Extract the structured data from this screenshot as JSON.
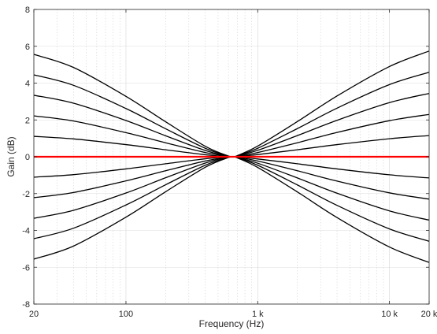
{
  "chart_data": {
    "type": "line",
    "title": "",
    "xlabel": "Frequency (Hz)",
    "ylabel": "Gain (dB)",
    "xscale": "log",
    "xlim": [
      20,
      20000
    ],
    "ylim": [
      -8,
      8
    ],
    "grid": true,
    "x_ticks": [
      20,
      100,
      1000,
      10000,
      20000
    ],
    "x_tick_labels": [
      "20",
      "100",
      "1 k",
      "10 k",
      "20 k"
    ],
    "y_ticks": [
      -8,
      -6,
      -4,
      -2,
      0,
      2,
      4,
      6,
      8
    ],
    "y_tick_labels": [
      "-8",
      "-6",
      "-4",
      "-2",
      "0",
      "2",
      "4",
      "6",
      "8"
    ],
    "x": [
      20,
      40,
      100,
      200,
      400,
      600,
      660,
      700,
      1000,
      2000,
      4000,
      10000,
      20000
    ],
    "series": [
      {
        "color": "#000000",
        "values": [
          5.56,
          4.85,
          3.28,
          1.9,
          0.57,
          0.04,
          0.0,
          -0.06,
          -0.58,
          -1.91,
          -3.3,
          -4.9,
          -5.74
        ]
      },
      {
        "color": "#000000",
        "values": [
          4.45,
          3.88,
          2.62,
          1.52,
          0.46,
          0.03,
          0.0,
          -0.05,
          -0.46,
          -1.53,
          -2.64,
          -3.92,
          -4.59
        ]
      },
      {
        "color": "#000000",
        "values": [
          3.34,
          2.91,
          1.97,
          1.14,
          0.34,
          0.02,
          0.0,
          -0.04,
          -0.35,
          -1.15,
          -1.98,
          -2.94,
          -3.44
        ]
      },
      {
        "color": "#000000",
        "values": [
          2.22,
          1.94,
          1.31,
          0.76,
          0.23,
          0.02,
          0.0,
          -0.02,
          -0.23,
          -0.76,
          -1.32,
          -1.96,
          -2.3
        ]
      },
      {
        "color": "#000000",
        "values": [
          1.11,
          0.97,
          0.66,
          0.38,
          0.11,
          0.01,
          0.0,
          -0.01,
          -0.12,
          -0.38,
          -0.66,
          -0.98,
          -1.15
        ]
      },
      {
        "color": "#ff0000",
        "values": [
          0,
          0,
          0,
          0,
          0,
          0,
          0,
          0,
          0,
          0,
          0,
          0,
          0
        ]
      },
      {
        "color": "#000000",
        "values": [
          -1.11,
          -0.97,
          -0.66,
          -0.38,
          -0.11,
          -0.01,
          0.0,
          0.01,
          0.12,
          0.38,
          0.66,
          0.98,
          1.15
        ]
      },
      {
        "color": "#000000",
        "values": [
          -2.22,
          -1.94,
          -1.31,
          -0.76,
          -0.23,
          -0.02,
          0.0,
          0.02,
          0.23,
          0.76,
          1.32,
          1.96,
          2.3
        ]
      },
      {
        "color": "#000000",
        "values": [
          -3.34,
          -2.91,
          -1.97,
          -1.14,
          -0.34,
          -0.02,
          0.0,
          0.04,
          0.35,
          1.15,
          1.98,
          2.94,
          3.44
        ]
      },
      {
        "color": "#000000",
        "values": [
          -4.45,
          -3.88,
          -2.62,
          -1.52,
          -0.46,
          -0.03,
          0.0,
          0.05,
          0.46,
          1.53,
          2.64,
          3.92,
          4.59
        ]
      },
      {
        "color": "#000000",
        "values": [
          -5.56,
          -4.85,
          -3.28,
          -1.9,
          -0.57,
          -0.04,
          0.0,
          0.06,
          0.58,
          1.91,
          3.3,
          4.9,
          5.74
        ]
      }
    ]
  }
}
